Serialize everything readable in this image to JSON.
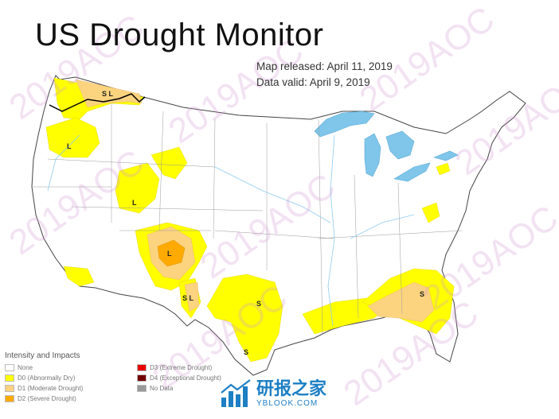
{
  "title": "US Drought Monitor",
  "map_released": "Map released: April 11, 2019",
  "data_valid": "Data valid: April 9, 2019",
  "legend": {
    "title": "Intensity and Impacts",
    "items": [
      {
        "label": "None",
        "color": "#ffffff"
      },
      {
        "label": "D0 (Abnormally Dry)",
        "color": "#ffff00"
      },
      {
        "label": "D1 (Moderate Drought)",
        "color": "#fcd37f"
      },
      {
        "label": "D2 (Severe Drought)",
        "color": "#ffaa00"
      },
      {
        "label": "D3 (Extreme Drought)",
        "color": "#e60000"
      },
      {
        "label": "D4 (Exceptional Drought)",
        "color": "#730000"
      },
      {
        "label": "No Data",
        "color": "#999999"
      }
    ]
  },
  "impact_labels": [
    "S L",
    "L",
    "L",
    "L",
    "S L",
    "S",
    "S",
    "S"
  ],
  "watermark": "2019AOC",
  "logo": {
    "name": "研报之家",
    "url": "YBLOOK.COM"
  }
}
